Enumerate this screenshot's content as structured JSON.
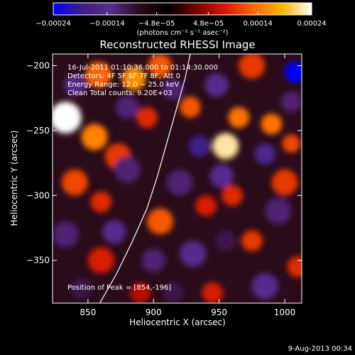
{
  "chart_data": {
    "type": "heatmap",
    "title": "Reconstructed RHESSI Image",
    "xlabel": "Heliocentric X (arcsec)",
    "ylabel": "Heliocentric Y (arcsec)",
    "xlim": [
      823,
      1013
    ],
    "ylim": [
      -383,
      -191
    ],
    "x_ticks": [
      850,
      900,
      950,
      1000
    ],
    "x_tick_labels": [
      "850",
      "900",
      "950",
      "1000"
    ],
    "y_ticks": [
      -200,
      -250,
      -300,
      -350
    ],
    "y_tick_labels": [
      "−200",
      "−250",
      "−300",
      "−350"
    ],
    "colorbar": {
      "range": [
        -0.00024,
        0.00024
      ],
      "tick_values": [
        -0.00024,
        -0.00014,
        -4.8e-05,
        4.8e-05,
        0.00014,
        0.00024
      ],
      "tick_labels": [
        "−0.00024",
        "−0.00014",
        "−4.8e−05",
        "4.8e−05",
        "0.00014",
        "0.00024"
      ],
      "unit_label": "(photons cm⁻² s⁻¹ asec⁻²)",
      "colormap": [
        "#0000ff",
        "#3a1f8a",
        "#5b2a8f",
        "#2a0b1a",
        "#000000",
        "#7a0000",
        "#d81a00",
        "#ff6a00",
        "#ffb400",
        "#ffffff"
      ]
    },
    "annotations": [
      "16-Jul-2011 01:10:36.000 to 01:14:30.000",
      "Detectors: 4F 5F 6F 7F 8F, Att 0",
      "Energy Range: 12.0 − 25.0 keV",
      "Clean    Total counts: 9.20E+03"
    ],
    "peak_label": "Position of Peak = [854,-196]",
    "footer_date": "9-Aug-2013 00:34",
    "limb_curve": [
      [
        859,
        -383
      ],
      [
        872,
        -360
      ],
      [
        884,
        -335
      ],
      [
        895,
        -310
      ],
      [
        903,
        -285
      ],
      [
        910,
        -260
      ],
      [
        917,
        -235
      ],
      [
        924,
        -210
      ],
      [
        928,
        -191
      ]
    ],
    "blobs": [
      {
        "x": 833,
        "y": -240,
        "v": 0.00024,
        "r": 12
      },
      {
        "x": 858,
        "y": -207,
        "v": 0.00013,
        "r": 10
      },
      {
        "x": 855,
        "y": -255,
        "v": 0.00015,
        "r": 10
      },
      {
        "x": 873,
        "y": -270,
        "v": 0.0001,
        "r": 10
      },
      {
        "x": 885,
        "y": -210,
        "v": 0.00016,
        "r": 9
      },
      {
        "x": 905,
        "y": -200,
        "v": 0.00012,
        "r": 9
      },
      {
        "x": 895,
        "y": -240,
        "v": 9e-05,
        "r": 8
      },
      {
        "x": 928,
        "y": -232,
        "v": 0.00012,
        "r": 8
      },
      {
        "x": 955,
        "y": -262,
        "v": 0.00022,
        "r": 10
      },
      {
        "x": 965,
        "y": -240,
        "v": 0.00014,
        "r": 8
      },
      {
        "x": 990,
        "y": -245,
        "v": 0.00014,
        "r": 8
      },
      {
        "x": 975,
        "y": -200,
        "v": 0.0001,
        "r": 10
      },
      {
        "x": 1005,
        "y": -260,
        "v": 0.00011,
        "r": 7
      },
      {
        "x": 840,
        "y": -290,
        "v": 0.00011,
        "r": 10
      },
      {
        "x": 860,
        "y": -305,
        "v": 9e-05,
        "r": 8
      },
      {
        "x": 905,
        "y": -320,
        "v": 0.00012,
        "r": 10
      },
      {
        "x": 940,
        "y": -308,
        "v": 8e-05,
        "r": 8
      },
      {
        "x": 960,
        "y": -300,
        "v": 9e-05,
        "r": 8
      },
      {
        "x": 1000,
        "y": -290,
        "v": 0.0001,
        "r": 10
      },
      {
        "x": 975,
        "y": -335,
        "v": 0.0001,
        "r": 8
      },
      {
        "x": 1010,
        "y": -355,
        "v": 9e-05,
        "r": 8
      },
      {
        "x": 860,
        "y": -350,
        "v": 8e-05,
        "r": 10
      },
      {
        "x": 890,
        "y": -375,
        "v": 6e-05,
        "r": 8
      },
      {
        "x": 945,
        "y": -375,
        "v": 8e-05,
        "r": 8
      },
      {
        "x": 840,
        "y": -215,
        "v": -0.00014,
        "r": 8
      },
      {
        "x": 880,
        "y": -232,
        "v": -0.00012,
        "r": 9
      },
      {
        "x": 915,
        "y": -218,
        "v": -0.00012,
        "r": 8
      },
      {
        "x": 948,
        "y": -215,
        "v": -0.00014,
        "r": 9
      },
      {
        "x": 1008,
        "y": -205,
        "v": -0.00024,
        "r": 8
      },
      {
        "x": 935,
        "y": -262,
        "v": -0.00018,
        "r": 8
      },
      {
        "x": 985,
        "y": -268,
        "v": -0.00016,
        "r": 8
      },
      {
        "x": 1005,
        "y": -228,
        "v": -0.00012,
        "r": 8
      },
      {
        "x": 880,
        "y": -280,
        "v": -0.00012,
        "r": 10
      },
      {
        "x": 920,
        "y": -290,
        "v": -0.00012,
        "r": 10
      },
      {
        "x": 952,
        "y": -285,
        "v": -0.00014,
        "r": 9
      },
      {
        "x": 833,
        "y": -330,
        "v": -0.00012,
        "r": 10
      },
      {
        "x": 870,
        "y": -328,
        "v": -0.00014,
        "r": 9
      },
      {
        "x": 930,
        "y": -345,
        "v": -0.00014,
        "r": 10
      },
      {
        "x": 955,
        "y": -335,
        "v": -0.0001,
        "r": 8
      },
      {
        "x": 995,
        "y": -312,
        "v": -0.00012,
        "r": 10
      },
      {
        "x": 900,
        "y": -350,
        "v": -0.00012,
        "r": 9
      },
      {
        "x": 985,
        "y": -370,
        "v": -0.00014,
        "r": 10
      },
      {
        "x": 915,
        "y": -375,
        "v": -0.0001,
        "r": 8
      },
      {
        "x": 845,
        "y": -372,
        "v": -0.0001,
        "r": 8
      }
    ]
  }
}
